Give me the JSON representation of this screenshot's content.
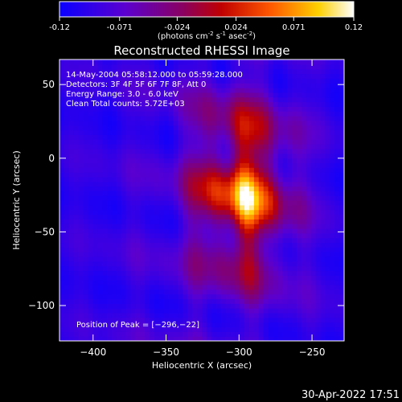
{
  "colorbar": {
    "ticks": [
      "-0.12",
      "-0.071",
      "-0.024",
      "0.024",
      "0.071",
      "0.12"
    ],
    "tick_values": [
      -0.12,
      -0.071,
      -0.024,
      0.024,
      0.071,
      0.12
    ],
    "units_prefix": "(photons cm",
    "units_exp1": "-2",
    "units_mid": " s",
    "units_exp2": "-1",
    "units_mid2": " asec",
    "units_exp3": "-2",
    "units_suffix": ")",
    "colors": [
      "#0a00ff",
      "#7a00b8",
      "#c00000",
      "#ff5a00",
      "#ffe000",
      "#ffffff"
    ]
  },
  "chart_data": {
    "type": "heatmap",
    "title": "Reconstructed RHESSI Image",
    "xlabel": "Heliocentric X (arcsec)",
    "ylabel": "Heliocentric Y (arcsec)",
    "xlim": [
      -423,
      -228
    ],
    "ylim": [
      -124,
      67
    ],
    "xticks": [
      -400,
      -350,
      -300,
      -250
    ],
    "yticks": [
      50,
      0,
      -50,
      -100
    ],
    "xtick_labels": [
      "−400",
      "−350",
      "−300",
      "−250"
    ],
    "ytick_labels": [
      "50",
      "0",
      "−50",
      "−100"
    ],
    "zlim": [
      -0.12,
      0.12
    ],
    "peak": [
      -296,
      -22
    ],
    "annotations": [
      "14-May-2004 05:58:12.000 to 05:59:28.000",
      "Detectors: 3F 4F 5F 6F 7F 8F, Att 0",
      "Energy Range: 3.0 - 6.0 keV",
      "Clean    Total counts: 5.72E+03"
    ],
    "peak_label": "Position of Peak = [−296,−22]"
  },
  "footer": {
    "timestamp": "30-Apr-2022 17:51"
  }
}
